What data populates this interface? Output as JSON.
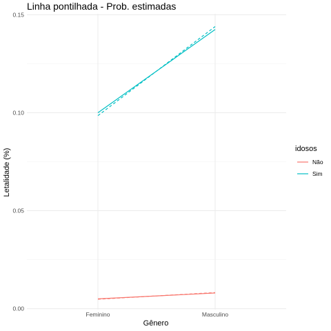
{
  "chart_data": {
    "type": "line",
    "title": "Linha pontilhada - Prob. estimadas",
    "xlabel": "Gênero",
    "ylabel": "Letalidade (%)",
    "categories": [
      "Feminino",
      "Masculino"
    ],
    "ylim": [
      -0.0005,
      0.1505
    ],
    "yticks": [
      0.0,
      0.05,
      0.1,
      0.15
    ],
    "ytick_labels": [
      "0.00",
      "0.05",
      "0.10",
      "0.15"
    ],
    "grid": true,
    "legend": {
      "title": "idosos",
      "position": "right",
      "entries": [
        "Não",
        "Sim"
      ]
    },
    "series": [
      {
        "name": "Não",
        "color": "#f8766d",
        "style": "solid",
        "values": [
          0.005,
          0.008
        ]
      },
      {
        "name": "Não",
        "color": "#f8766d",
        "style": "dashed",
        "values": [
          0.0048,
          0.0082
        ]
      },
      {
        "name": "Sim",
        "color": "#00bfc4",
        "style": "solid",
        "values": [
          0.1,
          0.1425
        ]
      },
      {
        "name": "Sim",
        "color": "#00bfc4",
        "style": "dashed",
        "values": [
          0.0985,
          0.144
        ]
      }
    ]
  }
}
